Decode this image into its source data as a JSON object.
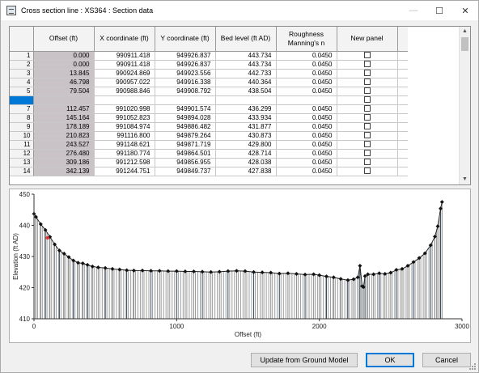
{
  "window": {
    "title": "Cross section line : XS364 : Section data",
    "minimize_glyph": "—",
    "maximize_glyph": "☐",
    "close_glyph": "✕"
  },
  "grid": {
    "columns": [
      "Offset (ft)",
      "X coordinate (ft)",
      "Y coordinate (ft)",
      "Bed level (ft AD)",
      "Roughness Manning's n",
      "New panel"
    ],
    "rows": [
      {
        "n": "1",
        "offset": "0.000",
        "x": "990911.418",
        "y": "949926.837",
        "bed": "443.734",
        "rough": "0.0450",
        "new_panel": false
      },
      {
        "n": "2",
        "offset": "0.000",
        "x": "990911.418",
        "y": "949926.837",
        "bed": "443.734",
        "rough": "0.0450",
        "new_panel": false
      },
      {
        "n": "3",
        "offset": "13.845",
        "x": "990924.869",
        "y": "949923.556",
        "bed": "442.733",
        "rough": "0.0450",
        "new_panel": false
      },
      {
        "n": "4",
        "offset": "46.798",
        "x": "990957.022",
        "y": "949916.338",
        "bed": "440.364",
        "rough": "0.0450",
        "new_panel": false
      },
      {
        "n": "5",
        "offset": "79.504",
        "x": "990988.846",
        "y": "949908.792",
        "bed": "438.504",
        "rough": "0.0450",
        "new_panel": false
      },
      {
        "n": "",
        "offset": "",
        "x": "",
        "y": "",
        "bed": "",
        "rough": "",
        "new_panel": false,
        "selected": true
      },
      {
        "n": "7",
        "offset": "112.457",
        "x": "991020.998",
        "y": "949901.574",
        "bed": "436.299",
        "rough": "0.0450",
        "new_panel": false
      },
      {
        "n": "8",
        "offset": "145.164",
        "x": "991052.823",
        "y": "949894.028",
        "bed": "433.934",
        "rough": "0.0450",
        "new_panel": false
      },
      {
        "n": "9",
        "offset": "178.189",
        "x": "991084.974",
        "y": "949886.482",
        "bed": "431.877",
        "rough": "0.0450",
        "new_panel": false
      },
      {
        "n": "10",
        "offset": "210.823",
        "x": "991116.800",
        "y": "949879.264",
        "bed": "430.873",
        "rough": "0.0450",
        "new_panel": false
      },
      {
        "n": "11",
        "offset": "243.527",
        "x": "991148.621",
        "y": "949871.719",
        "bed": "429.800",
        "rough": "0.0450",
        "new_panel": false
      },
      {
        "n": "12",
        "offset": "276.480",
        "x": "991180.774",
        "y": "949864.501",
        "bed": "428.714",
        "rough": "0.0450",
        "new_panel": false
      },
      {
        "n": "13",
        "offset": "309.186",
        "x": "991212.598",
        "y": "949856.955",
        "bed": "428.038",
        "rough": "0.0450",
        "new_panel": false
      },
      {
        "n": "14",
        "offset": "342.139",
        "x": "991244.751",
        "y": "949849.737",
        "bed": "427.838",
        "rough": "0.0450",
        "new_panel": false
      }
    ]
  },
  "chart_data": {
    "type": "line",
    "xlabel": "Offset (ft)",
    "ylabel": "Elevation (ft AD)",
    "xlim": [
      0,
      3000
    ],
    "ylim": [
      410,
      450
    ],
    "xticks": [
      "0",
      "1000",
      "2000",
      "3000"
    ],
    "yticks": [
      "410",
      "420",
      "430",
      "440",
      "450"
    ],
    "highlight_point": {
      "x": 95,
      "y": 436
    },
    "series": [
      {
        "x": [
          0,
          14,
          47,
          80,
          112,
          145,
          178,
          211,
          244,
          276,
          309,
          342,
          375,
          410,
          450,
          500,
          550,
          600,
          650,
          700,
          760,
          820,
          880,
          940,
          1000,
          1060,
          1120,
          1180,
          1240,
          1300,
          1360,
          1420,
          1480,
          1540,
          1600,
          1660,
          1720,
          1780,
          1840,
          1900,
          1960,
          2000,
          2050,
          2100,
          2150,
          2200,
          2240,
          2270,
          2285,
          2300,
          2310,
          2320,
          2340,
          2380,
          2420,
          2460,
          2500,
          2540,
          2580,
          2620,
          2660,
          2700,
          2740,
          2780,
          2810,
          2830,
          2850,
          2860
        ],
        "y": [
          443.7,
          442.7,
          440.4,
          438.5,
          436.3,
          433.9,
          431.9,
          430.9,
          429.8,
          428.7,
          428.0,
          427.8,
          427.3,
          426.8,
          426.5,
          426.3,
          426.0,
          425.8,
          425.6,
          425.5,
          425.5,
          425.4,
          425.4,
          425.3,
          425.3,
          425.2,
          425.2,
          425.1,
          425.0,
          425.1,
          425.3,
          425.4,
          425.3,
          425.0,
          424.9,
          424.8,
          424.5,
          424.6,
          424.4,
          424.2,
          424.3,
          424.0,
          423.6,
          423.3,
          422.8,
          422.4,
          422.7,
          423.3,
          427.0,
          420.5,
          420.2,
          423.7,
          424.3,
          424.3,
          424.6,
          424.4,
          424.8,
          425.7,
          426.0,
          427.0,
          428.2,
          429.5,
          431.0,
          433.6,
          436.4,
          439.7,
          445.4,
          447.5
        ]
      }
    ]
  },
  "buttons": {
    "update_label": "Update from Ground Model",
    "ok_label": "OK",
    "cancel_label": "Cancel"
  }
}
